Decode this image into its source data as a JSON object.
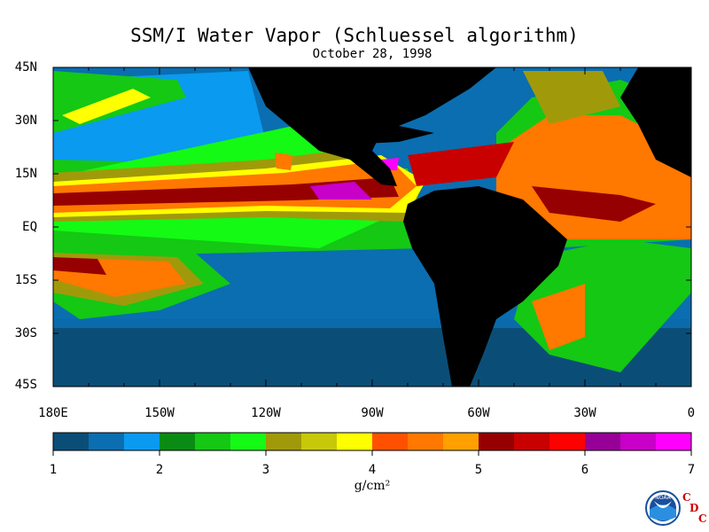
{
  "title": "SSM/I Water Vapor (Schluessel algorithm)",
  "subtitle": "October 28, 1998",
  "latitude_labels": [
    "45N",
    "30N",
    "15N",
    "EQ",
    "15S",
    "30S",
    "45S"
  ],
  "longitude_labels": [
    "180E",
    "150W",
    "120W",
    "90W",
    "60W",
    "30W",
    "0"
  ],
  "colorbar": {
    "ticks": [
      "1",
      "2",
      "3",
      "4",
      "5",
      "6",
      "7"
    ],
    "units": "g/cm²",
    "colors": [
      "#0a4e78",
      "#0a6eb0",
      "#0a9af0",
      "#0a8c14",
      "#14c814",
      "#14fa14",
      "#a09a0a",
      "#c8c80a",
      "#ffff00",
      "#ff5000",
      "#ff7800",
      "#ffa000",
      "#960000",
      "#c80000",
      "#ff0000",
      "#960096",
      "#c800c8",
      "#ff00ff"
    ]
  },
  "logo": {
    "noaa_text": "NOAA",
    "cdc_letters": [
      "C",
      "D",
      "C"
    ]
  },
  "colors": {
    "land": "#000000",
    "ocean_dry": "#0a4e78",
    "frame": "#000000"
  }
}
